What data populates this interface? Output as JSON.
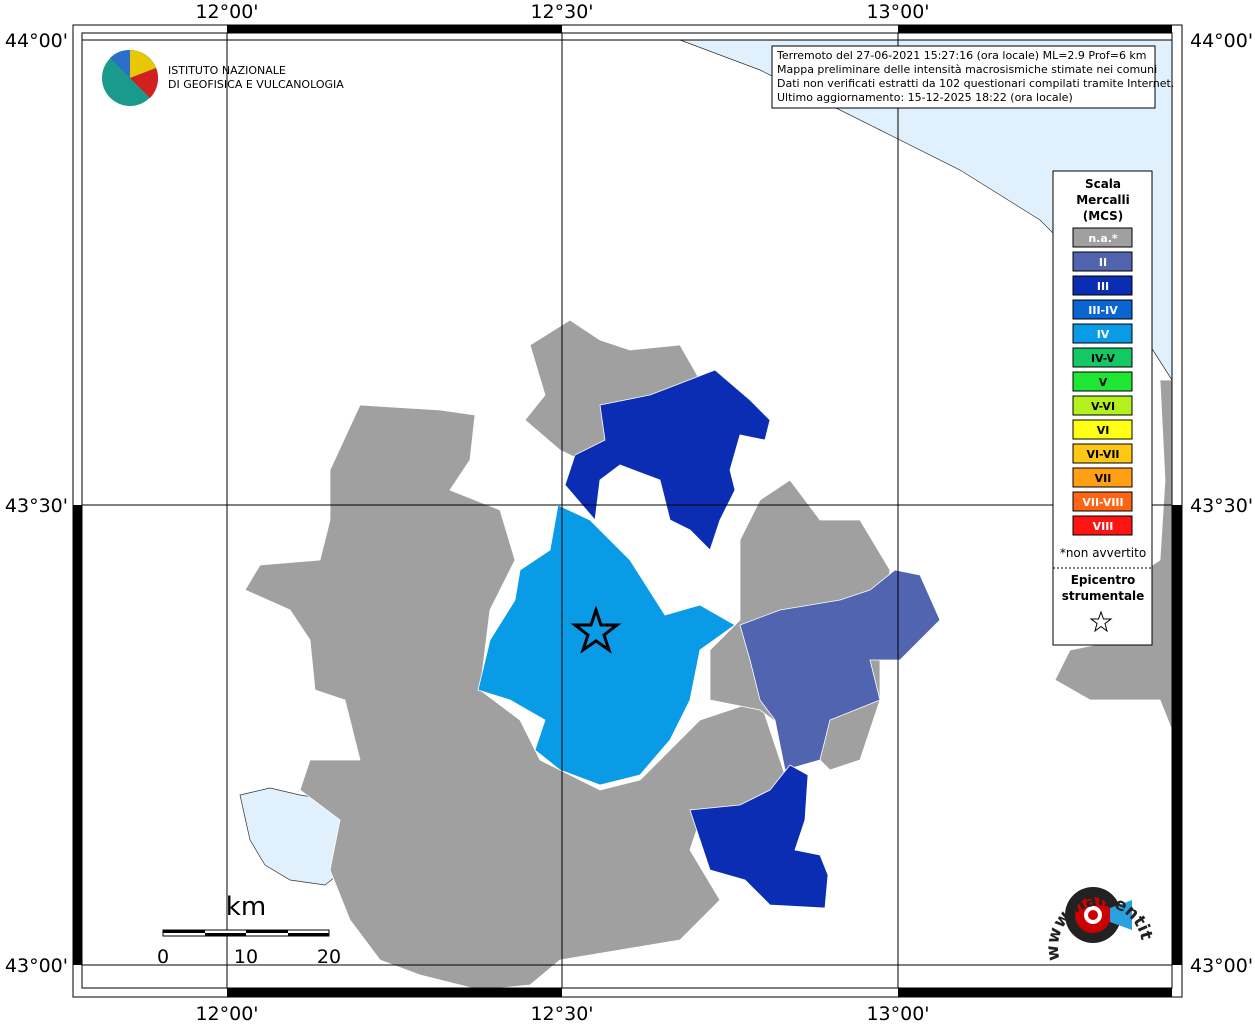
{
  "logo": {
    "lines": [
      "ISTITUTO NAZIONALE",
      "DI GEOFISICA E VULCANOLOGIA"
    ]
  },
  "info": {
    "lines": [
      "Terremoto del 27-06-2021 15:27:16 (ora locale) ML=2.9 Prof=6 km",
      "Mappa preliminare delle intensità macrosismiche stimate nei comuni",
      "Dati non verificati estratti da 102 questionari compilati tramite Internet.",
      "Ultimo aggiornamento: 15-12-2025 18:22 (ora locale)"
    ]
  },
  "graticule": {
    "longitudes": [
      "12°00'",
      "12°30'",
      "13°00'"
    ],
    "latitudes": [
      "44°00'",
      "43°30'",
      "43°00'"
    ]
  },
  "legend": {
    "title": [
      "Scala",
      "Mercalli",
      "(MCS)"
    ],
    "items": [
      {
        "label": "n.a.*",
        "color": "#a0a0a0"
      },
      {
        "label": "II",
        "color": "#5064b0"
      },
      {
        "label": "III",
        "color": "#0a2db4"
      },
      {
        "label": "III-IV",
        "color": "#0a64d2"
      },
      {
        "label": "IV",
        "color": "#0a9be6"
      },
      {
        "label": "IV-V",
        "color": "#14c864"
      },
      {
        "label": "V",
        "color": "#1ee632"
      },
      {
        "label": "V-VI",
        "color": "#b4f01e"
      },
      {
        "label": "VI",
        "color": "#ffff14"
      },
      {
        "label": "VI-VII",
        "color": "#ffc814"
      },
      {
        "label": "VII",
        "color": "#ffa014"
      },
      {
        "label": "VII-VIII",
        "color": "#ff6414"
      },
      {
        "label": "VIII",
        "color": "#ff1414"
      }
    ],
    "note": "*non avvertito",
    "epicentre": [
      "Epicentro",
      "strumentale"
    ]
  },
  "scale_bar": {
    "unit": "km",
    "labels": [
      "0",
      "10",
      "20"
    ]
  },
  "site": "www.haisentitoilterremoto.it"
}
